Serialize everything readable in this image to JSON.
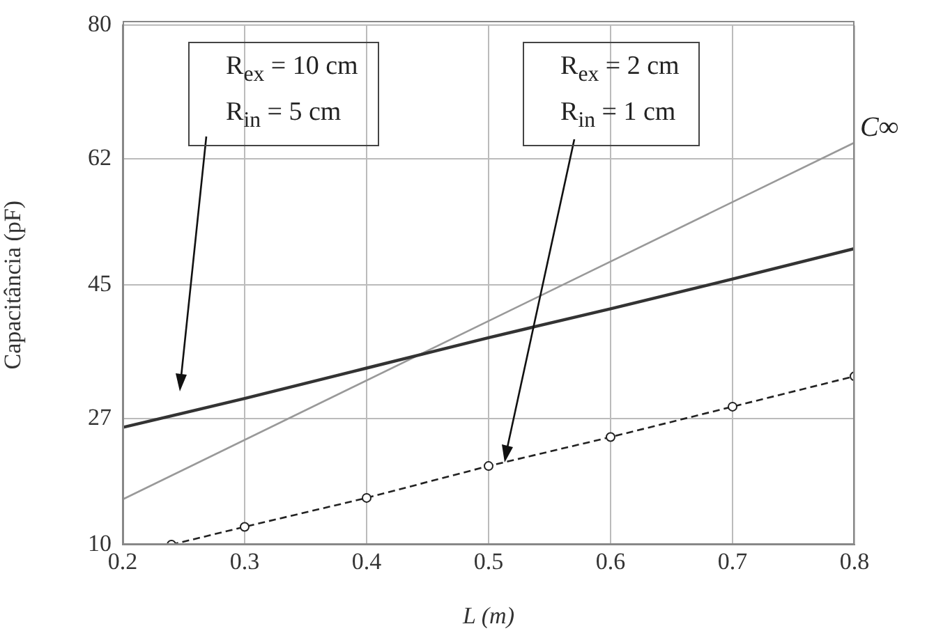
{
  "chart_data": {
    "type": "line",
    "xlabel": "L (m)",
    "ylabel": "Capacitância (pF)",
    "xlim": [
      0.2,
      0.8
    ],
    "xticks": [
      0.2,
      0.3,
      0.4,
      0.5,
      0.6,
      0.7,
      0.8
    ],
    "ylim": [
      10,
      80
    ],
    "yticks": [
      10,
      27,
      45,
      62,
      80
    ],
    "grid": true,
    "legend": false,
    "series": [
      {
        "color": "#333333",
        "x": [
          0.2,
          0.3,
          0.4,
          0.5,
          0.6,
          0.7,
          0.8
        ],
        "values": [
          25.8,
          29.7,
          33.8,
          37.9,
          41.8,
          45.8,
          49.9
        ],
        "marker": "none",
        "line_style": "solid"
      },
      {
        "color": "#222222",
        "x": [
          0.24,
          0.3,
          0.4,
          0.5,
          0.6,
          0.7,
          0.8
        ],
        "values": [
          10,
          12.4,
          16.3,
          20.6,
          24.5,
          28.6,
          32.7
        ],
        "marker": "circle",
        "line_style": "dashed"
      },
      {
        "name": "C∞",
        "color": "#999999",
        "x": [
          0.2,
          0.8
        ],
        "values": [
          16.1,
          64.2
        ],
        "marker": "none",
        "line_style": "solid"
      }
    ],
    "annotations": [
      "R$_{ex}$ = 10 cm\nR$_{in}$ = 5 cm",
      "R$_{ex}$ = 2 cm\nR$_{in}$ = 1 cm"
    ]
  }
}
